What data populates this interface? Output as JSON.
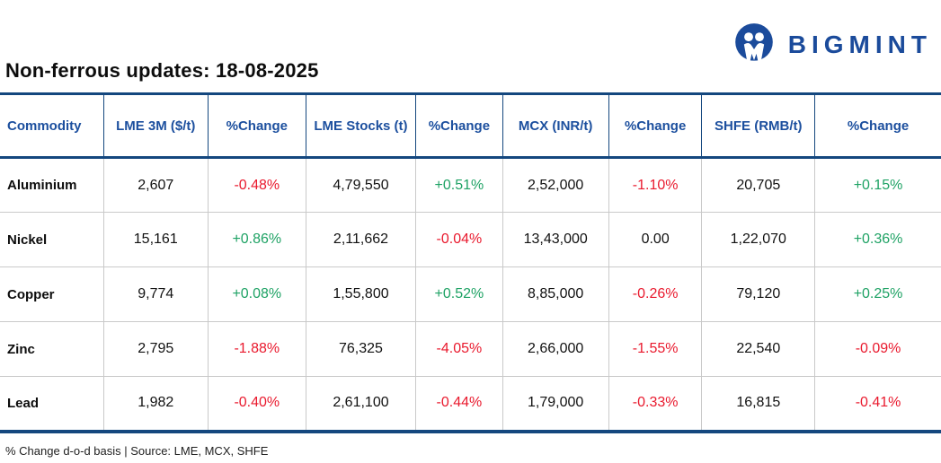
{
  "brand": {
    "name": "BIGMINT",
    "logo_icon": "bigmint-people-m-icon",
    "blue": "#1b4b9b"
  },
  "header": {
    "title": "Non-ferrous updates: 18-08-2025"
  },
  "colors": {
    "table_border_navy": "#14477e",
    "header_text_blue": "#1c4f9e",
    "positive_green": "#1ea264",
    "negative_red": "#e9192d",
    "row_divider_gray": "#c9c9c9"
  },
  "table": {
    "columns": [
      "Commodity",
      "LME 3M ($/t)",
      "%Change",
      "LME Stocks (t)",
      "%Change",
      "MCX (INR/t)",
      "%Change",
      "SHFE (RMB/t)",
      "%Change"
    ],
    "rows": [
      {
        "commodity": "Aluminium",
        "values": [
          "2,607",
          "-0.48%",
          "4,79,550",
          "+0.51%",
          "2,52,000",
          "-1.10%",
          "20,705",
          "+0.15%"
        ]
      },
      {
        "commodity": "Nickel",
        "values": [
          "15,161",
          "+0.86%",
          "2,11,662",
          "-0.04%",
          "13,43,000",
          "0.00",
          "1,22,070",
          "+0.36%"
        ]
      },
      {
        "commodity": "Copper",
        "values": [
          "9,774",
          "+0.08%",
          "1,55,800",
          "+0.52%",
          "8,85,000",
          "-0.26%",
          "79,120",
          "+0.25%"
        ]
      },
      {
        "commodity": "Zinc",
        "values": [
          "2,795",
          "-1.88%",
          "76,325",
          "-4.05%",
          "2,66,000",
          "-1.55%",
          "22,540",
          "-0.09%"
        ]
      },
      {
        "commodity": "Lead",
        "values": [
          "1,982",
          "-0.40%",
          "2,61,100",
          "-0.44%",
          "1,79,000",
          "-0.33%",
          "16,815",
          "-0.41%"
        ]
      }
    ]
  },
  "footer": {
    "note": "% Change d-o-d basis | Source: LME, MCX, SHFE"
  }
}
